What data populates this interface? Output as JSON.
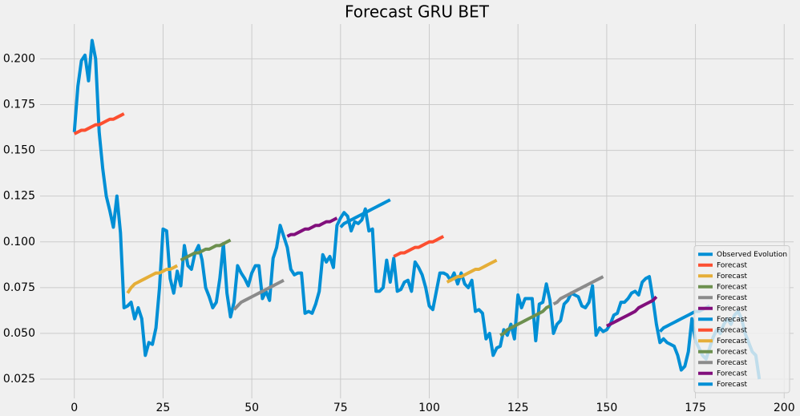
{
  "chart_data": {
    "type": "line",
    "title": "Forecast GRU BET",
    "xlim": [
      -9.65,
      202.65
    ],
    "ylim": [
      0.0145,
      0.219
    ],
    "xticks": [
      0,
      25,
      50,
      75,
      100,
      125,
      150,
      175,
      200
    ],
    "yticks": [
      {
        "value": 0.025,
        "label": "0.025"
      },
      {
        "value": 0.05,
        "label": "0.050"
      },
      {
        "value": 0.075,
        "label": "0.075"
      },
      {
        "value": 0.1,
        "label": "0.100"
      },
      {
        "value": 0.125,
        "label": "0.125"
      },
      {
        "value": 0.15,
        "label": "0.150"
      },
      {
        "value": 0.175,
        "label": "0.175"
      },
      {
        "value": 0.2,
        "label": "0.200"
      }
    ],
    "grid": true,
    "legend": "lower right",
    "series": [
      {
        "name": "Observed Evolution",
        "color": "#008fd5",
        "x": [
          0,
          1,
          2,
          3,
          4,
          5,
          6,
          7,
          8,
          9,
          10,
          11,
          12,
          13,
          14,
          15,
          16,
          17,
          18,
          19,
          20,
          21,
          22,
          23,
          24,
          25,
          26,
          27,
          28,
          29,
          30,
          31,
          32,
          33,
          34,
          35,
          36,
          37,
          38,
          39,
          40,
          41,
          42,
          43,
          44,
          45,
          46,
          47,
          48,
          49,
          50,
          51,
          52,
          53,
          54,
          55,
          56,
          57,
          58,
          59,
          60,
          61,
          62,
          63,
          64,
          65,
          66,
          67,
          68,
          69,
          70,
          71,
          72,
          73,
          74,
          75,
          76,
          77,
          78,
          79,
          80,
          81,
          82,
          83,
          84,
          85,
          86,
          87,
          88,
          89,
          90,
          91,
          92,
          93,
          94,
          95,
          96,
          97,
          98,
          99,
          100,
          101,
          102,
          103,
          104,
          105,
          106,
          107,
          108,
          109,
          110,
          111,
          112,
          113,
          114,
          115,
          116,
          117,
          118,
          119,
          120,
          121,
          122,
          123,
          124,
          125,
          126,
          127,
          128,
          129,
          130,
          131,
          132,
          133,
          134,
          135,
          136,
          137,
          138,
          139,
          140,
          141,
          142,
          143,
          144,
          145,
          146,
          147,
          148,
          149,
          150,
          151,
          152,
          153,
          154,
          155,
          156,
          157,
          158,
          159,
          160,
          161,
          162,
          163,
          164,
          165,
          166,
          167,
          168,
          169,
          170,
          171,
          172,
          173,
          174,
          175,
          176,
          177,
          178,
          179,
          180,
          181,
          182,
          183,
          184,
          185,
          186,
          187,
          188,
          189,
          190,
          191,
          192,
          193
        ],
        "values": [
          0.16,
          0.185,
          0.199,
          0.202,
          0.188,
          0.21,
          0.2,
          0.16,
          0.14,
          0.125,
          0.117,
          0.108,
          0.125,
          0.105,
          0.064,
          0.065,
          0.067,
          0.058,
          0.064,
          0.058,
          0.038,
          0.045,
          0.044,
          0.053,
          0.075,
          0.107,
          0.106,
          0.08,
          0.072,
          0.084,
          0.076,
          0.098,
          0.087,
          0.085,
          0.094,
          0.098,
          0.09,
          0.075,
          0.07,
          0.064,
          0.067,
          0.08,
          0.099,
          0.072,
          0.059,
          0.067,
          0.087,
          0.083,
          0.08,
          0.076,
          0.083,
          0.087,
          0.087,
          0.069,
          0.073,
          0.068,
          0.091,
          0.097,
          0.109,
          0.103,
          0.097,
          0.085,
          0.082,
          0.083,
          0.083,
          0.061,
          0.062,
          0.061,
          0.066,
          0.073,
          0.093,
          0.089,
          0.092,
          0.086,
          0.109,
          0.113,
          0.116,
          0.114,
          0.106,
          0.111,
          0.11,
          0.112,
          0.118,
          0.106,
          0.107,
          0.073,
          0.073,
          0.075,
          0.09,
          0.078,
          0.091,
          0.073,
          0.074,
          0.078,
          0.079,
          0.073,
          0.089,
          0.086,
          0.082,
          0.075,
          0.065,
          0.063,
          0.073,
          0.083,
          0.083,
          0.082,
          0.079,
          0.083,
          0.077,
          0.083,
          0.077,
          0.075,
          0.079,
          0.062,
          0.063,
          0.061,
          0.047,
          0.05,
          0.038,
          0.042,
          0.043,
          0.052,
          0.049,
          0.055,
          0.047,
          0.071,
          0.064,
          0.069,
          0.069,
          0.069,
          0.046,
          0.066,
          0.067,
          0.077,
          0.068,
          0.05,
          0.055,
          0.057,
          0.066,
          0.068,
          0.072,
          0.071,
          0.07,
          0.065,
          0.064,
          0.067,
          0.076,
          0.049,
          0.053,
          0.051,
          0.052,
          0.055,
          0.06,
          0.061,
          0.067,
          0.067,
          0.069,
          0.072,
          0.073,
          0.071,
          0.078,
          0.08,
          0.081,
          0.069,
          0.055,
          0.045,
          0.047,
          0.045,
          0.044,
          0.043,
          0.038,
          0.03,
          0.032,
          0.04,
          0.058,
          0.046,
          0.042,
          0.038,
          0.036,
          0.042,
          0.048,
          0.052,
          0.05,
          0.055,
          0.058,
          0.055,
          0.06,
          0.062,
          0.058,
          0.05,
          0.045,
          0.04,
          0.038,
          0.025
        ]
      },
      {
        "name": "Forecast",
        "color": "#fc4f30",
        "x": [
          0,
          1,
          2,
          3,
          4,
          5,
          6,
          7,
          8,
          9,
          10,
          11,
          12,
          13,
          14
        ],
        "values": [
          0.159,
          0.16,
          0.161,
          0.161,
          0.162,
          0.163,
          0.164,
          0.164,
          0.165,
          0.166,
          0.167,
          0.167,
          0.168,
          0.169,
          0.17
        ]
      },
      {
        "name": "Forecast",
        "color": "#e5ae38",
        "x": [
          15,
          16,
          17,
          18,
          19,
          20,
          21,
          22,
          23,
          24,
          25,
          26,
          27,
          28,
          29
        ],
        "values": [
          0.072,
          0.075,
          0.077,
          0.078,
          0.079,
          0.08,
          0.081,
          0.082,
          0.083,
          0.083,
          0.084,
          0.085,
          0.085,
          0.086,
          0.087
        ]
      },
      {
        "name": "Forecast",
        "color": "#6d904f",
        "x": [
          30,
          31,
          32,
          33,
          34,
          35,
          36,
          37,
          38,
          39,
          40,
          41,
          42,
          43,
          44
        ],
        "values": [
          0.09,
          0.091,
          0.092,
          0.093,
          0.094,
          0.094,
          0.095,
          0.096,
          0.096,
          0.097,
          0.098,
          0.098,
          0.099,
          0.1,
          0.101
        ]
      },
      {
        "name": "Forecast",
        "color": "#8b8b8b",
        "x": [
          45,
          46,
          47,
          48,
          49,
          50,
          51,
          52,
          53,
          54,
          55,
          56,
          57,
          58,
          59
        ],
        "values": [
          0.063,
          0.065,
          0.067,
          0.068,
          0.069,
          0.07,
          0.071,
          0.072,
          0.073,
          0.074,
          0.075,
          0.076,
          0.077,
          0.078,
          0.079
        ]
      },
      {
        "name": "Forecast",
        "color": "#810f7c",
        "x": [
          60,
          61,
          62,
          63,
          64,
          65,
          66,
          67,
          68,
          69,
          70,
          71,
          72,
          73,
          74
        ],
        "values": [
          0.103,
          0.104,
          0.104,
          0.105,
          0.106,
          0.107,
          0.107,
          0.108,
          0.109,
          0.109,
          0.11,
          0.111,
          0.111,
          0.112,
          0.113
        ]
      },
      {
        "name": "Forecast",
        "color": "#008fd5",
        "x": [
          75,
          76,
          77,
          78,
          79,
          80,
          81,
          82,
          83,
          84,
          85,
          86,
          87,
          88,
          89
        ],
        "values": [
          0.108,
          0.11,
          0.111,
          0.112,
          0.113,
          0.114,
          0.115,
          0.116,
          0.117,
          0.118,
          0.119,
          0.12,
          0.121,
          0.122,
          0.123
        ]
      },
      {
        "name": "Forecast",
        "color": "#fc4f30",
        "x": [
          90,
          91,
          92,
          93,
          94,
          95,
          96,
          97,
          98,
          99,
          100,
          101,
          102,
          103,
          104
        ],
        "values": [
          0.092,
          0.093,
          0.094,
          0.094,
          0.095,
          0.096,
          0.097,
          0.097,
          0.098,
          0.099,
          0.1,
          0.1,
          0.101,
          0.102,
          0.103
        ]
      },
      {
        "name": "Forecast",
        "color": "#e5ae38",
        "x": [
          105,
          106,
          107,
          108,
          109,
          110,
          111,
          112,
          113,
          114,
          115,
          116,
          117,
          118,
          119
        ],
        "values": [
          0.078,
          0.079,
          0.08,
          0.081,
          0.081,
          0.082,
          0.083,
          0.084,
          0.085,
          0.085,
          0.086,
          0.087,
          0.088,
          0.089,
          0.09
        ]
      },
      {
        "name": "Forecast",
        "color": "#6d904f",
        "x": [
          120,
          121,
          122,
          123,
          124,
          125,
          126,
          127,
          128,
          129,
          130,
          131,
          132,
          133,
          134
        ],
        "values": [
          0.049,
          0.05,
          0.052,
          0.053,
          0.054,
          0.055,
          0.056,
          0.057,
          0.058,
          0.059,
          0.06,
          0.061,
          0.062,
          0.064,
          0.065
        ]
      },
      {
        "name": "Forecast",
        "color": "#8b8b8b",
        "x": [
          135,
          136,
          137,
          138,
          139,
          140,
          141,
          142,
          143,
          144,
          145,
          146,
          147,
          148,
          149
        ],
        "values": [
          0.066,
          0.067,
          0.069,
          0.07,
          0.071,
          0.072,
          0.073,
          0.074,
          0.075,
          0.076,
          0.077,
          0.078,
          0.079,
          0.08,
          0.081
        ]
      },
      {
        "name": "Forecast",
        "color": "#810f7c",
        "x": [
          150,
          151,
          152,
          153,
          154,
          155,
          156,
          157,
          158,
          159,
          160,
          161,
          162,
          163,
          164
        ],
        "values": [
          0.054,
          0.055,
          0.056,
          0.057,
          0.058,
          0.059,
          0.06,
          0.061,
          0.062,
          0.064,
          0.065,
          0.066,
          0.067,
          0.068,
          0.07
        ]
      },
      {
        "name": "Forecast",
        "color": "#008fd5",
        "x": [
          165,
          166,
          167,
          168,
          169,
          170,
          171,
          172,
          173,
          174,
          175,
          176,
          177,
          178,
          179
        ],
        "values": [
          0.051,
          0.053,
          0.054,
          0.055,
          0.056,
          0.057,
          0.058,
          0.059,
          0.06,
          0.061,
          0.062,
          0.062,
          0.063,
          0.064,
          0.065
        ]
      }
    ]
  }
}
